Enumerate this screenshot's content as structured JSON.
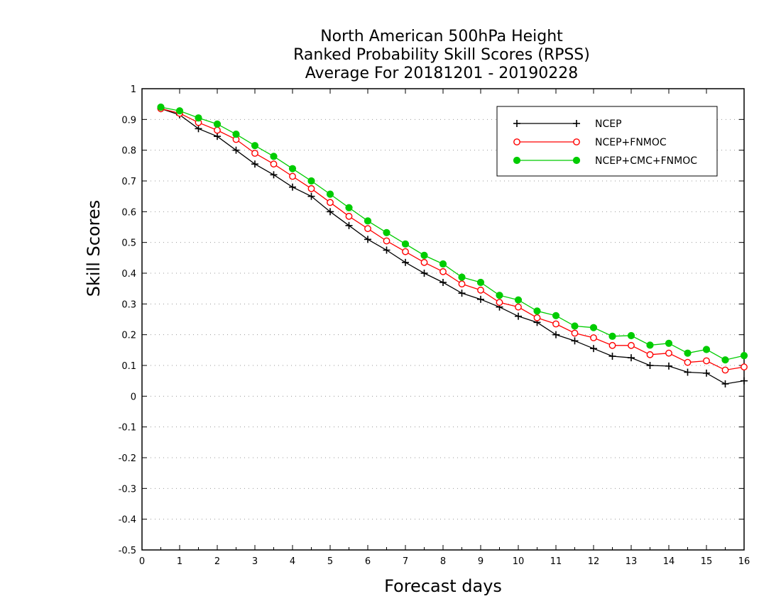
{
  "chart_data": {
    "type": "line",
    "title": [
      "North American 500hPa Height",
      "Ranked Probability Skill Scores (RPSS)",
      "Average For 20181201 - 20190228"
    ],
    "xlabel": "Forecast days",
    "ylabel": "Skill Scores",
    "xlim": [
      0,
      16
    ],
    "ylim": [
      -0.5,
      1
    ],
    "xticks": [
      "0",
      "1",
      "2",
      "3",
      "4",
      "5",
      "6",
      "7",
      "8",
      "9",
      "10",
      "11",
      "12",
      "13",
      "14",
      "15",
      "16"
    ],
    "yticks": [
      "1",
      "0.9",
      "0.8",
      "0.7",
      "0.6",
      "0.5",
      "0.4",
      "0.3",
      "0.2",
      "0.1",
      "0",
      "-0.1",
      "-0.2",
      "-0.3",
      "-0.4",
      "-0.5"
    ],
    "grid": "horizontal dotted",
    "legend_position": "top-right",
    "x": [
      0.5,
      1,
      1.5,
      2,
      2.5,
      3,
      3.5,
      4,
      4.5,
      5,
      5.5,
      6,
      6.5,
      7,
      7.5,
      8,
      8.5,
      9,
      9.5,
      10,
      10.5,
      11,
      11.5,
      12,
      12.5,
      13,
      13.5,
      14,
      14.5,
      15,
      15.5,
      16
    ],
    "series": [
      {
        "name": "NCEP",
        "color": "#000000",
        "marker": "plus",
        "values": [
          0.935,
          0.915,
          0.87,
          0.845,
          0.8,
          0.755,
          0.72,
          0.68,
          0.65,
          0.6,
          0.555,
          0.51,
          0.475,
          0.435,
          0.4,
          0.37,
          0.335,
          0.315,
          0.29,
          0.26,
          0.24,
          0.2,
          0.18,
          0.155,
          0.13,
          0.125,
          0.1,
          0.098,
          0.078,
          0.075,
          0.04,
          0.05
        ]
      },
      {
        "name": "NCEP+FNMOC",
        "color": "#ff0000",
        "marker": "open-circle",
        "values": [
          0.935,
          0.92,
          0.89,
          0.865,
          0.835,
          0.79,
          0.755,
          0.715,
          0.675,
          0.63,
          0.585,
          0.545,
          0.505,
          0.47,
          0.435,
          0.405,
          0.365,
          0.345,
          0.305,
          0.29,
          0.255,
          0.235,
          0.205,
          0.19,
          0.165,
          0.165,
          0.135,
          0.14,
          0.11,
          0.115,
          0.085,
          0.095
        ]
      },
      {
        "name": "NCEP+CMC+FNMOC",
        "color": "#00cc00",
        "marker": "filled-circle",
        "values": [
          0.94,
          0.928,
          0.905,
          0.885,
          0.852,
          0.815,
          0.78,
          0.74,
          0.7,
          0.657,
          0.613,
          0.57,
          0.532,
          0.495,
          0.458,
          0.43,
          0.387,
          0.37,
          0.328,
          0.313,
          0.277,
          0.262,
          0.228,
          0.223,
          0.195,
          0.197,
          0.166,
          0.172,
          0.14,
          0.152,
          0.118,
          0.132
        ]
      }
    ]
  }
}
